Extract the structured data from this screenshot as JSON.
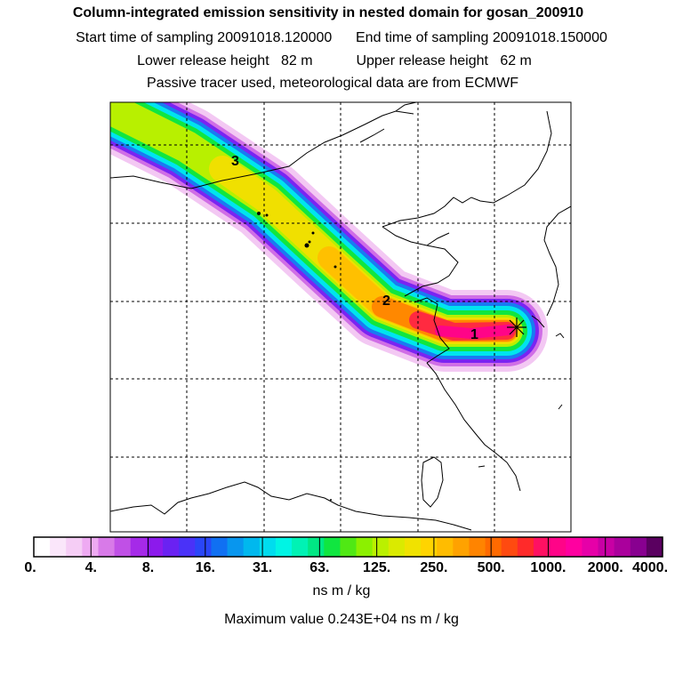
{
  "header": {
    "title": "Column-integrated emission sensitivity in nested domain for gosan_200910",
    "line2": "Start time of sampling 20091018.120000      End time of sampling 20091018.150000",
    "line3": "Lower release height   82 m           Upper release height   62 m",
    "line4": "Passive tracer used, meteorological data are from ECMWF"
  },
  "map": {
    "labels": [
      "3",
      "2",
      "1"
    ],
    "receptor_marker": "star-icon"
  },
  "colorbar": {
    "ticks": [
      "0.",
      "4.",
      "8.",
      "16.",
      "31.",
      "63.",
      "125.",
      "250.",
      "500.",
      "1000.",
      "2000.",
      "4000."
    ],
    "colors": [
      "#ffffff",
      "#fae6fa",
      "#f5cdf5",
      "#eeaaf2",
      "#d87ae8",
      "#c050e6",
      "#a52ae8",
      "#8c1aec",
      "#6a22f2",
      "#4a32f8",
      "#2a46f8",
      "#1070f2",
      "#0896ee",
      "#00b8ee",
      "#00dcee",
      "#00f4e4",
      "#00f2b4",
      "#00e884",
      "#10e640",
      "#50e814",
      "#8cf000",
      "#baf000",
      "#daea00",
      "#f0e200",
      "#ffd400",
      "#ffbc00",
      "#ffa200",
      "#ff8400",
      "#ff6a00",
      "#ff4a10",
      "#ff2a2a",
      "#ff1062",
      "#ff0488",
      "#ff00a0",
      "#e600a8",
      "#c800a4",
      "#aa009c",
      "#880090",
      "#5a0060"
    ],
    "unit": "ns m / kg",
    "max_text": "Maximum value  0.243E+04 ns m / kg"
  }
}
